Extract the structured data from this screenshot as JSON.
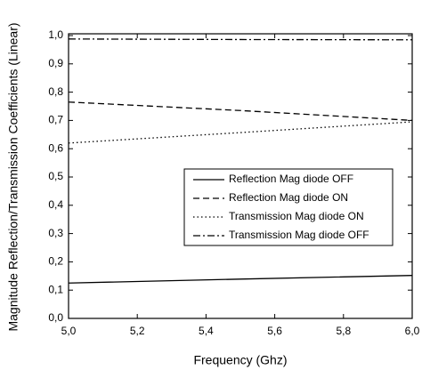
{
  "chart_data": {
    "type": "line",
    "x_label": "Frequency (Ghz)",
    "y_label": "Magnitude Reflection/Transmission Coefficients (Linear)",
    "x": [
      5.0,
      5.5,
      6.0
    ],
    "series": [
      {
        "name": "Reflection Mag diode OFF",
        "color": "#000000",
        "dash": "solid",
        "values": [
          0.125,
          0.139,
          0.152
        ]
      },
      {
        "name": "Reflection Mag diode ON",
        "color": "#000000",
        "dash": "dashed",
        "values": [
          0.765,
          0.735,
          0.7
        ]
      },
      {
        "name": "Transmission Mag diode ON",
        "color": "#000000",
        "dash": "dotted",
        "values": [
          0.62,
          0.657,
          0.695
        ]
      },
      {
        "name": "Transmission Mag diode OFF",
        "color": "#000000",
        "dash": "dashdot",
        "values": [
          0.988,
          0.986,
          0.985
        ]
      }
    ],
    "xlim": [
      5.0,
      6.0
    ],
    "xticks": [
      {
        "value": 5.0,
        "label": "5,0"
      },
      {
        "value": 5.2,
        "label": "5,2"
      },
      {
        "value": 5.4,
        "label": "5,4"
      },
      {
        "value": 5.6,
        "label": "5,6"
      },
      {
        "value": 5.8,
        "label": "5,8"
      },
      {
        "value": 6.0,
        "label": "6,0"
      }
    ],
    "ylim": [
      0,
      1.0
    ],
    "yticks": [
      {
        "value": 0,
        "label": "0,0"
      },
      {
        "value": 0.1,
        "label": "0,1"
      },
      {
        "value": 0.2,
        "label": "0,2"
      },
      {
        "value": 0.3,
        "label": "0,3"
      },
      {
        "value": 0.4,
        "label": "0,4"
      },
      {
        "value": 0.5,
        "label": "0,5"
      },
      {
        "value": 0.6,
        "label": "0,6"
      },
      {
        "value": 0.7,
        "label": "0,7"
      },
      {
        "value": 0.8,
        "label": "0,8"
      },
      {
        "value": 0.9,
        "label": "0,9"
      },
      {
        "value": 1.0,
        "label": "1,0"
      }
    ],
    "grid": false,
    "legend": "right"
  }
}
